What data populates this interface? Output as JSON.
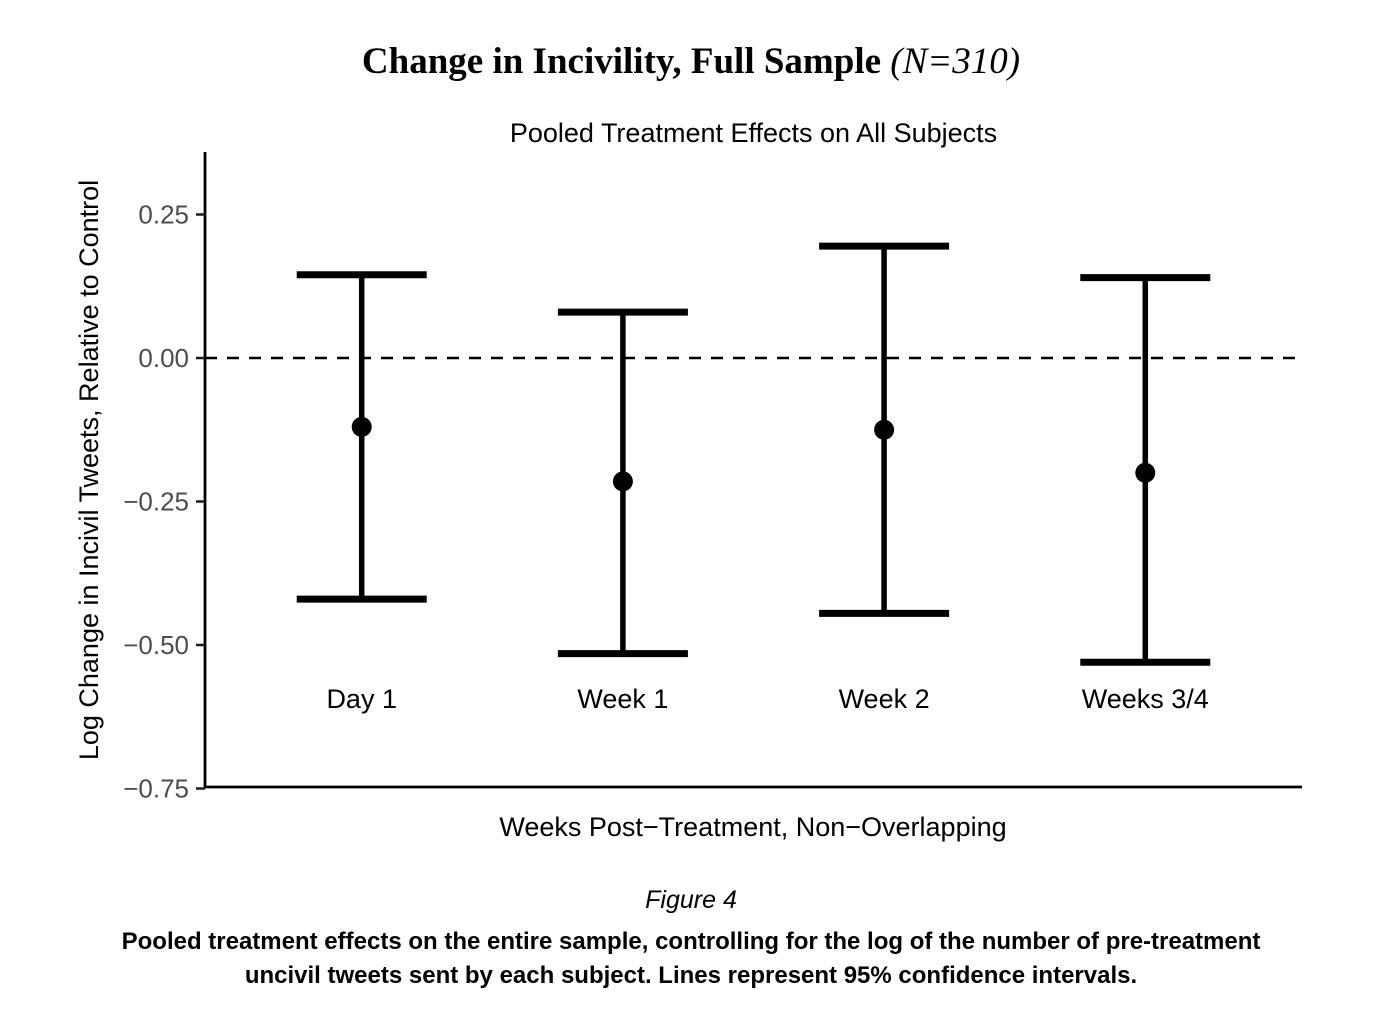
{
  "figure": {
    "title_main": "Change in Incivility, Full Sample ",
    "title_stat": "(N=310)",
    "caption_label": "Figure 4",
    "caption_lines": [
      "Pooled treatment effects on the entire sample, controlling for the log of the number of pre-treatment",
      "uncivil tweets sent by each subject. Lines represent 95% confidence intervals."
    ]
  },
  "chart_data": {
    "type": "errorbar",
    "title": "Change in Incivility, Full Sample (N=310)",
    "subtitle": "Pooled Treatment Effects on All Subjects",
    "xlabel": "Weeks Post−Treatment, Non−Overlapping",
    "ylabel": "Log Change in Incivil Tweets, Relative to Control",
    "categories": [
      "Day 1",
      "Week 1",
      "Week 2",
      "Weeks 3/4"
    ],
    "series": [
      {
        "name": "point_estimate",
        "values": [
          -0.12,
          -0.215,
          -0.125,
          -0.2
        ]
      },
      {
        "name": "ci_lower_95",
        "values": [
          -0.42,
          -0.515,
          -0.445,
          -0.53
        ]
      },
      {
        "name": "ci_upper_95",
        "values": [
          0.145,
          0.08,
          0.195,
          0.14
        ]
      }
    ],
    "ylim": [
      -0.75,
      0.36
    ],
    "yticks": [
      0.25,
      0.0,
      -0.25,
      -0.5,
      -0.75
    ],
    "ytick_labels": [
      "0.25",
      "0.00",
      "−0.25",
      "−0.50",
      "−0.75"
    ],
    "reference_line_y": 0,
    "grid": false,
    "legend": false,
    "colors": {
      "bar": "#000000",
      "point": "#000000",
      "axis_line": "#000000",
      "tick_mark": "#1a1a1a",
      "axis_text": "#4d4d4d",
      "reference_line": "#000000"
    }
  }
}
